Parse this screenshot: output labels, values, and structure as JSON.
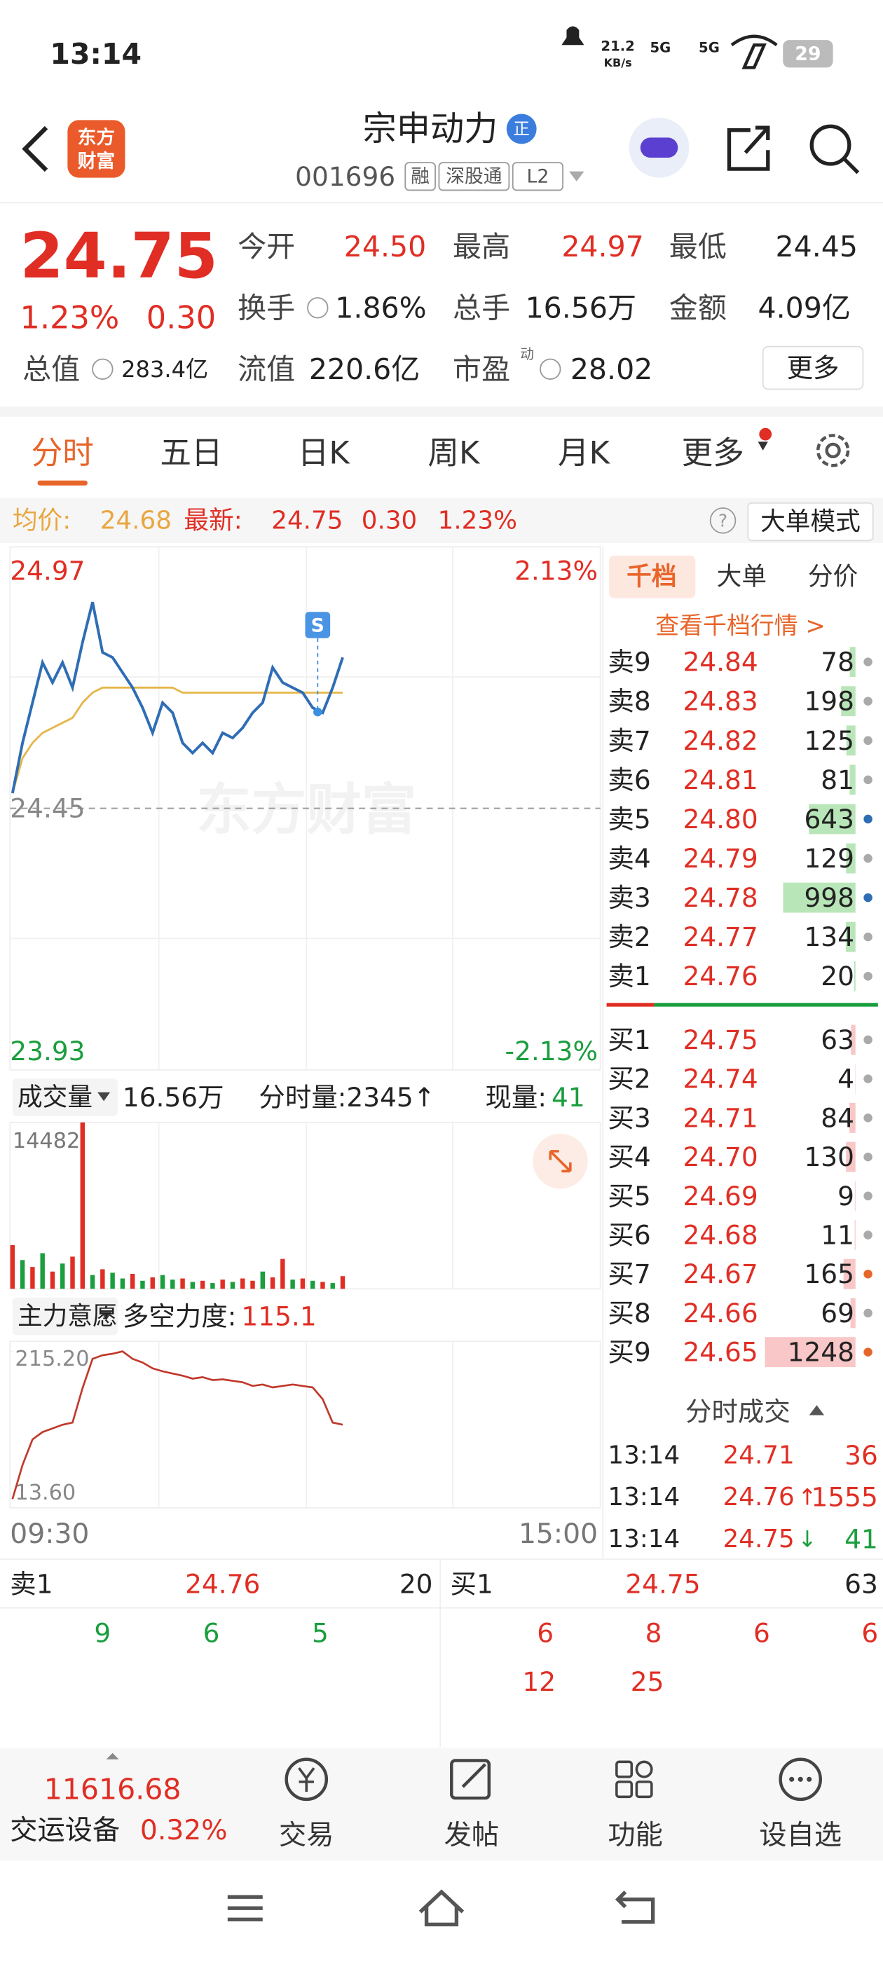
{
  "status_bar": {
    "time": "13:14",
    "net_speed": "21.2",
    "net_unit": "KB/s",
    "signal_1": "5G",
    "signal_2": "5G",
    "battery": "29"
  },
  "header": {
    "logo_line1": "东方",
    "logo_line2": "财富",
    "title": "宗申动力",
    "badge": "正",
    "code": "001696",
    "tags": [
      "融",
      "深股通",
      "L2"
    ]
  },
  "quote": {
    "price": "24.75",
    "change_pct": "1.23%",
    "change": "0.30",
    "more": "更多",
    "pe_superscript": "动",
    "fields": [
      {
        "label": "今开",
        "value": "24.50",
        "color": "#e02e24"
      },
      {
        "label": "最高",
        "value": "24.97",
        "color": "#e02e24"
      },
      {
        "label": "最低",
        "value": "24.45",
        "color": "#222222"
      },
      {
        "label": "换手",
        "value": "1.86%",
        "color": "#222222"
      },
      {
        "label": "总手",
        "value": "16.56万",
        "color": "#222222"
      },
      {
        "label": "金额",
        "value": "4.09亿",
        "color": "#222222"
      },
      {
        "label": "总值",
        "value": "283.4亿",
        "color": "#222222"
      },
      {
        "label": "流值",
        "value": "220.6亿",
        "color": "#222222"
      },
      {
        "label": "市盈",
        "value": "28.02",
        "color": "#222222"
      }
    ]
  },
  "tabs": [
    "分时",
    "五日",
    "日K",
    "周K",
    "月K",
    "更多"
  ],
  "info_bar": {
    "avg_label": "均价:",
    "avg": "24.68",
    "latest_label": "最新:",
    "latest": "24.75",
    "change": "0.30",
    "change_pct": "1.23%",
    "help": "?",
    "mode": "大单模式"
  },
  "chart_data": [
    {
      "type": "line",
      "watermark": "东方财富",
      "annotation": "S",
      "ylim": [
        23.93,
        24.97
      ],
      "yticks": [
        24.97,
        24.45,
        23.93
      ],
      "y2lim": [
        -2.13,
        2.13
      ],
      "y2ticks": [
        {
          "value": 2.13,
          "label": "2.13%"
        },
        {
          "value": -2.13,
          "label": "-2.13%"
        }
      ],
      "x_labels": [
        "09:30",
        "15:00"
      ],
      "series": [
        {
          "color": "#2f6db5",
          "values": [
            24.48,
            24.58,
            24.66,
            24.74,
            24.7,
            24.74,
            24.69,
            24.78,
            24.86,
            24.76,
            24.75,
            24.72,
            24.69,
            24.65,
            24.6,
            24.66,
            24.64,
            24.58,
            24.56,
            24.58,
            24.56,
            24.6,
            24.59,
            24.61,
            24.64,
            24.66,
            24.73,
            24.7,
            24.69,
            24.68,
            24.65,
            24.64,
            24.69,
            24.75
          ]
        },
        {
          "color": "#e6b64a",
          "values": [
            24.48,
            24.55,
            24.58,
            24.6,
            24.61,
            24.62,
            24.63,
            24.66,
            24.68,
            24.69,
            24.69,
            24.69,
            24.69,
            24.69,
            24.69,
            24.69,
            24.69,
            24.68,
            24.68,
            24.68,
            24.68,
            24.68,
            24.68,
            24.68,
            24.68,
            24.68,
            24.68,
            24.68,
            24.68,
            24.68,
            24.68,
            24.68,
            24.68,
            24.68
          ]
        }
      ]
    },
    {
      "type": "bar",
      "label": "成交量",
      "total": "16.56万",
      "period_volume": "分时量:2345↑",
      "current_label": "现量:",
      "current": "41",
      "ylim": [
        0,
        14482
      ],
      "yticks": [
        14482
      ],
      "series": [
        {
          "values": [
            3800,
            2500,
            1900,
            3100,
            1500,
            2200,
            2800,
            14482,
            1200,
            1700,
            1400,
            900,
            1300,
            700,
            1000,
            1200,
            800,
            900,
            600,
            700,
            500,
            800,
            600,
            900,
            700,
            1500,
            1000,
            2600,
            800,
            900,
            700,
            600,
            500,
            1100
          ],
          "colors": [
            "#e02e24",
            "#1b9e3e",
            "#e02e24",
            "#1b9e3e",
            "#e02e24",
            "#1b9e3e",
            "#e02e24",
            "#e02e24",
            "#1b9e3e",
            "#e02e24",
            "#1b9e3e",
            "#1b9e3e",
            "#e02e24",
            "#1b9e3e",
            "#e02e24",
            "#1b9e3e",
            "#1b9e3e",
            "#e02e24",
            "#1b9e3e",
            "#e02e24",
            "#1b9e3e",
            "#e02e24",
            "#1b9e3e",
            "#e02e24",
            "#e02e24",
            "#1b9e3e",
            "#e02e24",
            "#e02e24",
            "#1b9e3e",
            "#e02e24",
            "#1b9e3e",
            "#e02e24",
            "#1b9e3e",
            "#e02e24"
          ]
        }
      ]
    },
    {
      "type": "line",
      "label": "主力意愿",
      "metric_label": "多空力度:",
      "metric": "115.1",
      "ylim": [
        13.6,
        215.2
      ],
      "yticks": [
        {
          "value": 215.2,
          "label": "215.20"
        },
        {
          "value": 13.6,
          "label": "13.60"
        }
      ],
      "series": [
        {
          "color": "#c0392b",
          "values": [
            13.6,
            60,
            95,
            105,
            110,
            115,
            118,
            165,
            205,
            210,
            212,
            215.2,
            205,
            200,
            192,
            188,
            185,
            182,
            178,
            180,
            176,
            177,
            175,
            173,
            168,
            170,
            166,
            168,
            170,
            168,
            166,
            150,
            118,
            115.1
          ]
        }
      ]
    }
  ],
  "order_book": {
    "tabs": [
      "千档",
      "大单",
      "分价"
    ],
    "link": "查看千档行情 >",
    "asks": [
      {
        "label": "卖9",
        "price": "24.84",
        "volume": 78,
        "dot": "#aaaaaa"
      },
      {
        "label": "卖8",
        "price": "24.83",
        "volume": 198,
        "dot": "#aaaaaa"
      },
      {
        "label": "卖7",
        "price": "24.82",
        "volume": 125,
        "dot": "#aaaaaa"
      },
      {
        "label": "卖6",
        "price": "24.81",
        "volume": 81,
        "dot": "#aaaaaa"
      },
      {
        "label": "卖5",
        "price": "24.80",
        "volume": 643,
        "dot": "#2f6db5"
      },
      {
        "label": "卖4",
        "price": "24.79",
        "volume": 129,
        "dot": "#aaaaaa"
      },
      {
        "label": "卖3",
        "price": "24.78",
        "volume": 998,
        "dot": "#2f6db5"
      },
      {
        "label": "卖2",
        "price": "24.77",
        "volume": 134,
        "dot": "#aaaaaa"
      },
      {
        "label": "卖1",
        "price": "24.76",
        "volume": 20,
        "dot": "#aaaaaa"
      }
    ],
    "bids": [
      {
        "label": "买1",
        "price": "24.75",
        "volume": 63,
        "dot": "#aaaaaa"
      },
      {
        "label": "买2",
        "price": "24.74",
        "volume": 4,
        "dot": "#aaaaaa"
      },
      {
        "label": "买3",
        "price": "24.71",
        "volume": 84,
        "dot": "#aaaaaa"
      },
      {
        "label": "买4",
        "price": "24.70",
        "volume": 130,
        "dot": "#aaaaaa"
      },
      {
        "label": "买5",
        "price": "24.69",
        "volume": 9,
        "dot": "#aaaaaa"
      },
      {
        "label": "买6",
        "price": "24.68",
        "volume": 11,
        "dot": "#aaaaaa"
      },
      {
        "label": "买7",
        "price": "24.67",
        "volume": 165,
        "dot": "#e8652a"
      },
      {
        "label": "买8",
        "price": "24.66",
        "volume": 69,
        "dot": "#aaaaaa"
      },
      {
        "label": "买9",
        "price": "24.65",
        "volume": 1248,
        "dot": "#e8652a"
      }
    ]
  },
  "trades": {
    "title": "分时成交",
    "rows": [
      {
        "time": "13:14",
        "price": "24.71",
        "arrow": "",
        "volume": "36",
        "color": "#e02e24"
      },
      {
        "time": "13:14",
        "price": "24.76",
        "arrow": "↑",
        "volume": "1555",
        "color": "#e02e24"
      },
      {
        "time": "13:14",
        "price": "24.75",
        "arrow": "↓",
        "volume": "41",
        "color": "#1b9e3e"
      }
    ]
  },
  "queue": {
    "ask": {
      "label": "卖1",
      "price": "24.76",
      "volume": "20",
      "orders": [
        "9",
        "6",
        "5"
      ]
    },
    "bid": {
      "label": "买1",
      "price": "24.75",
      "volume": "63",
      "orders": [
        "6",
        "8",
        "6",
        "6",
        "12",
        "25"
      ]
    }
  },
  "bottom_bar": {
    "index": "11616.68",
    "sector": "交运设备",
    "sector_pct": "0.32%",
    "actions": [
      "交易",
      "发帖",
      "功能",
      "设自选"
    ]
  }
}
